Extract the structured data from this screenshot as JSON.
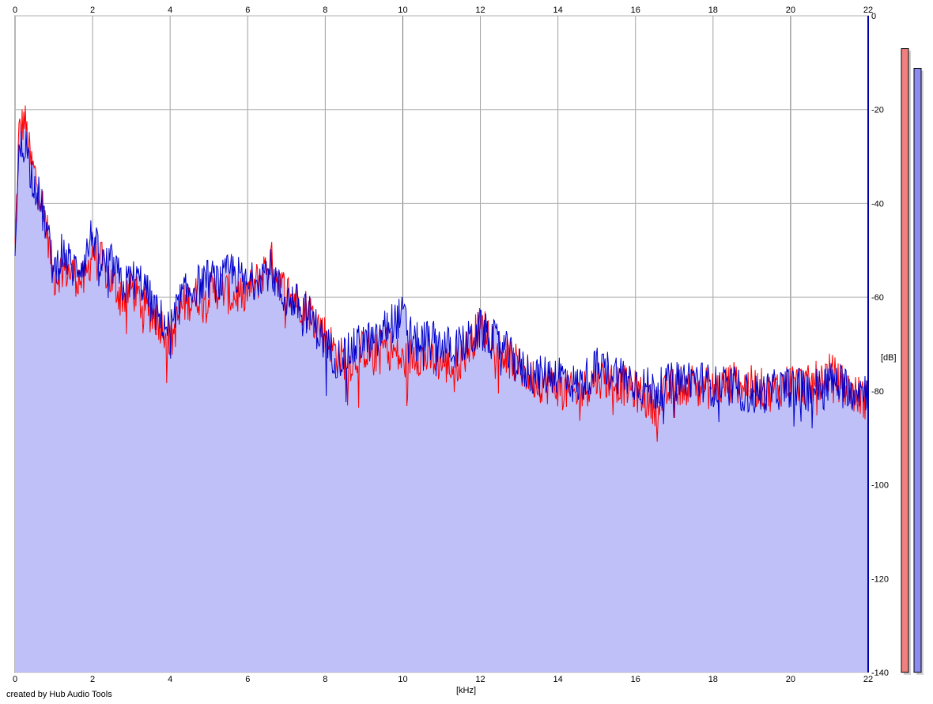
{
  "chart_data": {
    "type": "area",
    "xlabel": "[kHz]",
    "ylabel": "[dB]",
    "xlim": [
      0,
      22
    ],
    "ylim": [
      -140,
      0
    ],
    "x_ticks": [
      0,
      2,
      4,
      6,
      8,
      10,
      12,
      14,
      16,
      18,
      20,
      22
    ],
    "y_ticks": [
      0,
      -20,
      -40,
      -60,
      -80,
      -100,
      -120,
      -140
    ],
    "y_tick_labels": [
      "0",
      "-20",
      "-40",
      "-60",
      "-80",
      "-100",
      "-120",
      "-140"
    ],
    "grid": true,
    "fill_color": "#c0c0f8",
    "series": [
      {
        "color": "#ff0000",
        "x": [
          0,
          0.1,
          0.25,
          0.4,
          0.6,
          0.8,
          1.0,
          1.2,
          1.5,
          1.8,
          2.0,
          2.2,
          2.5,
          2.8,
          3.0,
          3.3,
          3.6,
          3.9,
          4.0,
          4.3,
          4.6,
          5.0,
          5.3,
          5.6,
          6.0,
          6.3,
          6.6,
          6.9,
          7.2,
          7.6,
          8.0,
          8.3,
          8.6,
          9.0,
          9.3,
          9.6,
          10.0,
          10.3,
          10.6,
          11.0,
          11.3,
          11.6,
          12.0,
          12.3,
          12.6,
          13.0,
          13.5,
          14.0,
          14.5,
          15.0,
          15.5,
          16.0,
          16.5,
          17.0,
          17.5,
          18.0,
          18.5,
          19.0,
          19.5,
          20.0,
          20.5,
          21.0,
          21.5,
          22.0
        ],
        "y": [
          -50,
          -25,
          -22,
          -31,
          -36,
          -44,
          -56,
          -54,
          -55,
          -57,
          -50,
          -52,
          -57,
          -60,
          -58,
          -62,
          -64,
          -67,
          -70,
          -62,
          -60,
          -59,
          -58,
          -60,
          -59,
          -56,
          -52,
          -58,
          -60,
          -63,
          -68,
          -72,
          -74,
          -71,
          -72,
          -70,
          -74,
          -72,
          -73,
          -74,
          -75,
          -72,
          -66,
          -68,
          -72,
          -75,
          -78,
          -79,
          -81,
          -77,
          -78,
          -80,
          -83,
          -79,
          -78,
          -80,
          -78,
          -79,
          -80,
          -78,
          -79,
          -76,
          -80,
          -82
        ]
      },
      {
        "color": "#0000cc",
        "x": [
          0,
          0.1,
          0.25,
          0.4,
          0.6,
          0.8,
          1.0,
          1.2,
          1.5,
          1.8,
          2.0,
          2.2,
          2.5,
          2.8,
          3.0,
          3.3,
          3.6,
          3.9,
          4.0,
          4.3,
          4.6,
          5.0,
          5.3,
          5.6,
          6.0,
          6.3,
          6.6,
          6.9,
          7.2,
          7.6,
          8.0,
          8.3,
          8.6,
          9.0,
          9.3,
          9.6,
          10.0,
          10.3,
          10.6,
          11.0,
          11.3,
          11.6,
          12.0,
          12.3,
          12.6,
          13.0,
          13.5,
          14.0,
          14.5,
          15.0,
          15.5,
          16.0,
          16.5,
          17.0,
          17.5,
          18.0,
          18.5,
          19.0,
          19.5,
          20.0,
          20.5,
          21.0,
          21.5,
          22.0
        ],
        "y": [
          -48,
          -30,
          -26,
          -33,
          -38,
          -45,
          -55,
          -50,
          -54,
          -52,
          -46,
          -53,
          -53,
          -58,
          -56,
          -57,
          -63,
          -66,
          -67,
          -60,
          -58,
          -56,
          -57,
          -54,
          -58,
          -55,
          -54,
          -60,
          -61,
          -64,
          -70,
          -73,
          -72,
          -69,
          -70,
          -66,
          -64,
          -70,
          -69,
          -70,
          -71,
          -70,
          -67,
          -69,
          -71,
          -75,
          -77,
          -76,
          -79,
          -75,
          -76,
          -78,
          -80,
          -78,
          -77,
          -79,
          -79,
          -81,
          -80,
          -79,
          -80,
          -78,
          -79,
          -80
        ]
      }
    ],
    "meters": [
      {
        "color": "#f08080",
        "level": 0.95
      },
      {
        "color": "#8c8cf0",
        "level": 0.92
      }
    ]
  },
  "footer": {
    "credit": "created by Hub Audio Tools"
  }
}
